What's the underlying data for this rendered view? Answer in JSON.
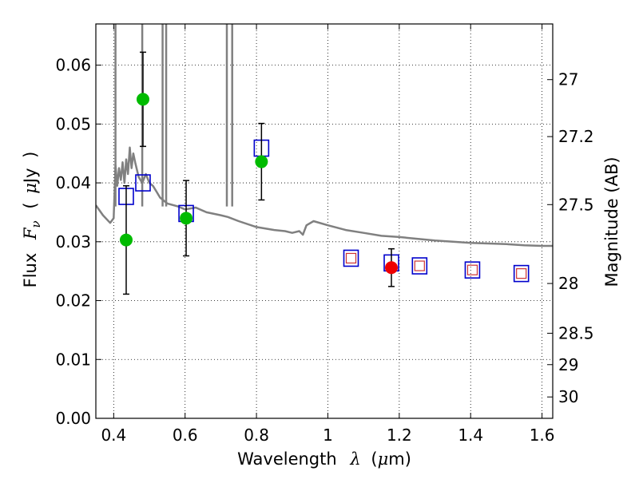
{
  "chart_data": {
    "type": "scatter",
    "xlabel": {
      "prefix": "Wavelength",
      "symbol": "λ",
      "unit_open": "(",
      "unit_mu": "μ",
      "unit_rest": "m)"
    },
    "ylabel": {
      "prefix": "Flux",
      "symbol_main": "F",
      "symbol_sub": "ν",
      "unit_open": "(",
      "unit_mu": "μ",
      "unit_rest": "Jy",
      "unit_close": ")"
    },
    "y2label": "Magnitude (AB)",
    "xlim": [
      0.35,
      1.63
    ],
    "ylim": [
      0.0,
      0.067
    ],
    "xticks": [
      0.4,
      0.6,
      0.8,
      1.0,
      1.2,
      1.4,
      1.6
    ],
    "xtick_labels": [
      "0.4",
      "0.6",
      "0.8",
      "1",
      "1.2",
      "1.4",
      "1.6"
    ],
    "yticks": [
      0.0,
      0.01,
      0.02,
      0.03,
      0.04,
      0.05,
      0.06
    ],
    "ytick_labels": [
      "0.00",
      "0.01",
      "0.02",
      "0.03",
      "0.04",
      "0.05",
      "0.06"
    ],
    "y2ticks": [
      27,
      27.2,
      27.5,
      28,
      28.5,
      29,
      30
    ],
    "y2tick_labels": [
      "27",
      "27.2",
      "27.5",
      "28",
      "28.5",
      "29",
      "30"
    ],
    "grid": true,
    "colors": {
      "model": "#808080",
      "green": "#00bb00",
      "red": "#ee0000",
      "blue_box": "#0000cc",
      "red_box": "#cc3333",
      "error": "#000000"
    },
    "model_sed": {
      "name": "",
      "x": [
        0.35,
        0.37,
        0.39,
        0.4,
        0.405,
        0.41,
        0.415,
        0.42,
        0.425,
        0.43,
        0.435,
        0.44,
        0.445,
        0.45,
        0.455,
        0.46,
        0.47,
        0.48,
        0.49,
        0.5,
        0.51,
        0.52,
        0.53,
        0.55,
        0.58,
        0.6,
        0.63,
        0.66,
        0.7,
        0.72,
        0.75,
        0.8,
        0.85,
        0.88,
        0.9,
        0.92,
        0.93,
        0.94,
        0.96,
        1.0,
        1.05,
        1.1,
        1.15,
        1.2,
        1.25,
        1.3,
        1.35,
        1.4,
        1.45,
        1.5,
        1.55,
        1.6,
        1.63
      ],
      "y": [
        0.0362,
        0.0345,
        0.0332,
        0.034,
        0.043,
        0.0395,
        0.0425,
        0.0405,
        0.0435,
        0.04,
        0.044,
        0.0415,
        0.046,
        0.0425,
        0.045,
        0.0435,
        0.041,
        0.04,
        0.0415,
        0.04,
        0.0395,
        0.0385,
        0.0375,
        0.0365,
        0.036,
        0.0355,
        0.0358,
        0.035,
        0.0345,
        0.0342,
        0.0335,
        0.0325,
        0.032,
        0.0318,
        0.0315,
        0.0318,
        0.0312,
        0.0328,
        0.0335,
        0.0328,
        0.032,
        0.0315,
        0.031,
        0.0308,
        0.0305,
        0.0302,
        0.03,
        0.0298,
        0.0297,
        0.0296,
        0.0294,
        0.0293,
        0.0293
      ]
    },
    "model_emission_lines": [
      {
        "x": 0.405,
        "top": 0.067
      },
      {
        "x": 0.48,
        "top": 0.067
      },
      {
        "x": 0.537,
        "top": 0.067
      },
      {
        "x": 0.547,
        "top": 0.067
      },
      {
        "x": 0.717,
        "top": 0.067
      },
      {
        "x": 0.732,
        "top": 0.067
      }
    ],
    "observed_green": [
      {
        "x": 0.435,
        "y": 0.0303,
        "err": 0.0092
      },
      {
        "x": 0.482,
        "y": 0.0542,
        "err": 0.008
      },
      {
        "x": 0.603,
        "y": 0.034,
        "err": 0.0064
      },
      {
        "x": 0.814,
        "y": 0.0436,
        "err": 0.0065
      }
    ],
    "observed_red": [
      {
        "x": 1.178,
        "y": 0.0256,
        "err": 0.0032
      }
    ],
    "model_boxes_blue": [
      {
        "x": 0.435,
        "y": 0.0377
      },
      {
        "x": 0.482,
        "y": 0.04
      },
      {
        "x": 0.603,
        "y": 0.0348
      },
      {
        "x": 0.814,
        "y": 0.0459
      },
      {
        "x": 1.065,
        "y": 0.0272
      },
      {
        "x": 1.178,
        "y": 0.0264
      },
      {
        "x": 1.257,
        "y": 0.0259
      },
      {
        "x": 1.405,
        "y": 0.0252
      },
      {
        "x": 1.542,
        "y": 0.0246
      }
    ],
    "model_boxes_red": [
      {
        "x": 1.065,
        "y": 0.0272
      },
      {
        "x": 1.257,
        "y": 0.0259
      },
      {
        "x": 1.405,
        "y": 0.0252
      },
      {
        "x": 1.542,
        "y": 0.0246
      }
    ]
  }
}
